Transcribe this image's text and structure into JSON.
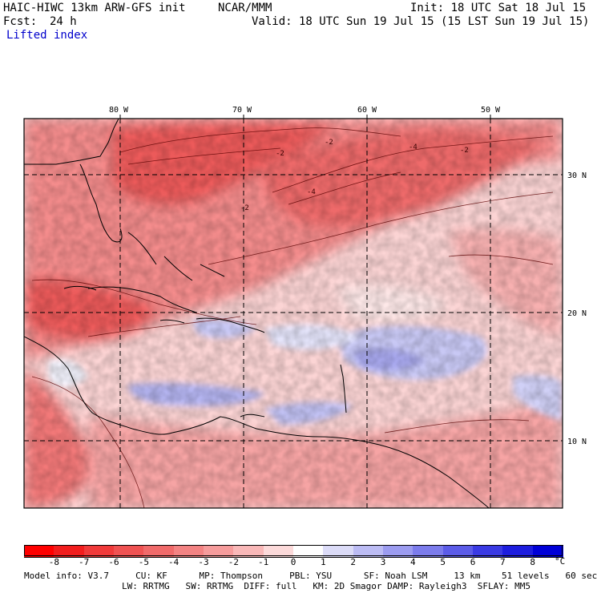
{
  "header": {
    "model_line": "HAIC-HIWC 13km ARW-GFS init",
    "org": "NCAR/MMM",
    "init": "Init: 18 UTC Sat 18 Jul 15",
    "fcst_label": "Fcst:",
    "fcst_value": "24 h",
    "valid": "Valid: 18 UTC Sun 19 Jul 15 (15 LST Sun 19 Jul 15)",
    "field": "Lifted index"
  },
  "map": {
    "lon_labels": [
      "80 W",
      "70 W",
      "60 W",
      "50 W"
    ],
    "lat_labels": [
      "30 N",
      "20 N",
      "10 N"
    ],
    "contour_labels": [
      "-2",
      "-2",
      "-4",
      "-2",
      "-4",
      "-2"
    ]
  },
  "colorbar": {
    "unit": "°C",
    "tick_labels": [
      "-8",
      "-7",
      "-6",
      "-5",
      "-4",
      "-3",
      "-2",
      "-1",
      "0",
      "1",
      "2",
      "3",
      "4",
      "5",
      "6",
      "7",
      "8"
    ],
    "colors": [
      "#ff0000",
      "#f21d1d",
      "#f03a3a",
      "#ef5252",
      "#f06a6a",
      "#f38383",
      "#f69c9c",
      "#f9b8b8",
      "#fcdada",
      "#ffffff",
      "#dcdcf8",
      "#bcbcf4",
      "#9c9cf0",
      "#7c7cec",
      "#5c5ce8",
      "#3a3ae4",
      "#1d1ddf",
      "#0000d8"
    ]
  },
  "footer": {
    "line1": "Model info: V3.7     CU: KF      MP: Thompson     PBL: YSU      SF: Noah LSM     13 km    51 levels   60 sec",
    "line2": "LW: RRTMG   SW: RRTMG  DIFF: full   KM: 2D Smagor DAMP: Rayleigh3  SFLAY: MM5"
  }
}
